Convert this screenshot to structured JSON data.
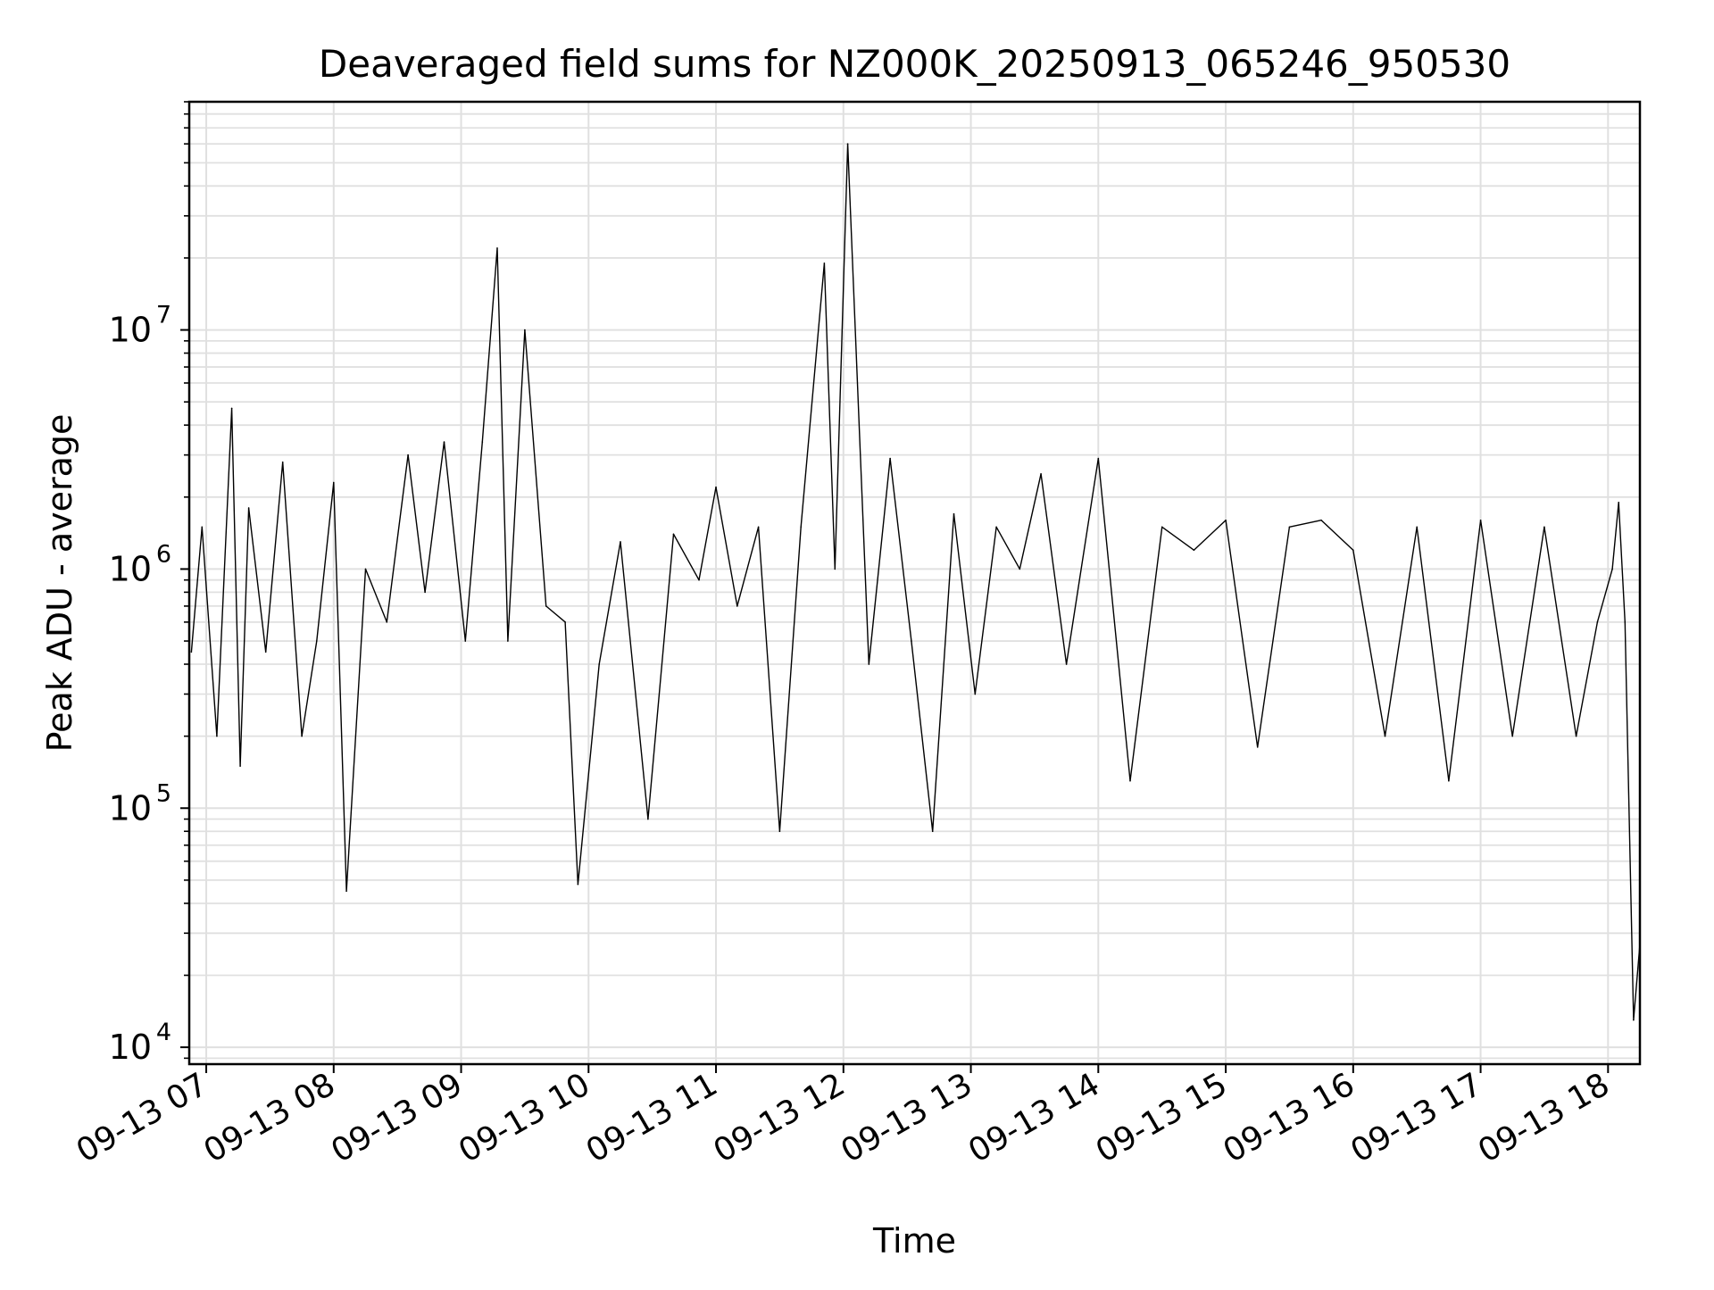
{
  "chart_data": {
    "type": "line",
    "title": "Deaveraged field sums for NZ000K_20250913_065246_950530",
    "xlabel": "Time",
    "ylabel": "Peak ADU - average",
    "yscale": "log",
    "grid": true,
    "line_color": "#000000",
    "grid_color": "#e0e0e0",
    "xlim": [
      "2025-09-13T06:52",
      "2025-09-13T18:15"
    ],
    "ylim": [
      8500,
      90000000
    ],
    "x_ticks": [
      "2025-09-13T07:00",
      "2025-09-13T08:00",
      "2025-09-13T09:00",
      "2025-09-13T10:00",
      "2025-09-13T11:00",
      "2025-09-13T12:00",
      "2025-09-13T13:00",
      "2025-09-13T14:00",
      "2025-09-13T15:00",
      "2025-09-13T16:00",
      "2025-09-13T17:00",
      "2025-09-13T18:00"
    ],
    "x_tick_labels": [
      "09-13 07",
      "09-13 08",
      "09-13 09",
      "09-13 10",
      "09-13 11",
      "09-13 12",
      "09-13 13",
      "09-13 14",
      "09-13 15",
      "09-13 16",
      "09-13 17",
      "09-13 18"
    ],
    "y_ticks": [
      10000,
      100000,
      1000000,
      10000000
    ],
    "y_tick_labels": [
      {
        "base": "10",
        "exp": "4"
      },
      {
        "base": "10",
        "exp": "5"
      },
      {
        "base": "10",
        "exp": "6"
      },
      {
        "base": "10",
        "exp": "7"
      }
    ],
    "series": [
      {
        "x": [
          "2025-09-13T06:53",
          "2025-09-13T06:58",
          "2025-09-13T07:05",
          "2025-09-13T07:12",
          "2025-09-13T07:16",
          "2025-09-13T07:20",
          "2025-09-13T07:28",
          "2025-09-13T07:36",
          "2025-09-13T07:45",
          "2025-09-13T07:52",
          "2025-09-13T08:00",
          "2025-09-13T08:06",
          "2025-09-13T08:15",
          "2025-09-13T08:25",
          "2025-09-13T08:35",
          "2025-09-13T08:43",
          "2025-09-13T08:52",
          "2025-09-13T09:02",
          "2025-09-13T09:10",
          "2025-09-13T09:17",
          "2025-09-13T09:22",
          "2025-09-13T09:30",
          "2025-09-13T09:40",
          "2025-09-13T09:49",
          "2025-09-13T09:55",
          "2025-09-13T10:05",
          "2025-09-13T10:15",
          "2025-09-13T10:28",
          "2025-09-13T10:40",
          "2025-09-13T10:52",
          "2025-09-13T11:00",
          "2025-09-13T11:10",
          "2025-09-13T11:20",
          "2025-09-13T11:30",
          "2025-09-13T11:40",
          "2025-09-13T11:51",
          "2025-09-13T11:56",
          "2025-09-13T12:02",
          "2025-09-13T12:12",
          "2025-09-13T12:22",
          "2025-09-13T12:32",
          "2025-09-13T12:42",
          "2025-09-13T12:52",
          "2025-09-13T13:02",
          "2025-09-13T13:12",
          "2025-09-13T13:23",
          "2025-09-13T13:33",
          "2025-09-13T13:45",
          "2025-09-13T14:00",
          "2025-09-13T14:15",
          "2025-09-13T14:30",
          "2025-09-13T14:45",
          "2025-09-13T15:00",
          "2025-09-13T15:15",
          "2025-09-13T15:30",
          "2025-09-13T15:45",
          "2025-09-13T16:00",
          "2025-09-13T16:15",
          "2025-09-13T16:30",
          "2025-09-13T16:45",
          "2025-09-13T17:00",
          "2025-09-13T17:15",
          "2025-09-13T17:30",
          "2025-09-13T17:45",
          "2025-09-13T17:55",
          "2025-09-13T18:02",
          "2025-09-13T18:05",
          "2025-09-13T18:08",
          "2025-09-13T18:12",
          "2025-09-13T18:15"
        ],
        "y": [
          450000,
          1500000,
          200000,
          4700000,
          150000,
          1800000,
          450000,
          2800000,
          200000,
          500000,
          2300000,
          45000,
          1000000,
          600000,
          3000000,
          800000,
          3400000,
          500000,
          3400000,
          22000000,
          500000,
          10000000,
          700000,
          600000,
          48000,
          400000,
          1300000,
          90000,
          1400000,
          900000,
          2200000,
          700000,
          1500000,
          80000,
          1500000,
          19000000,
          1000000,
          60000000,
          400000,
          2900000,
          500000,
          80000,
          1700000,
          300000,
          1500000,
          1000000,
          2500000,
          400000,
          2900000,
          130000,
          1500000,
          1200000,
          1600000,
          180000,
          1500000,
          1600000,
          1200000,
          200000,
          1500000,
          130000,
          1600000,
          200000,
          1500000,
          200000,
          600000,
          1000000,
          1900000,
          600000,
          13000,
          27000
        ]
      }
    ]
  }
}
